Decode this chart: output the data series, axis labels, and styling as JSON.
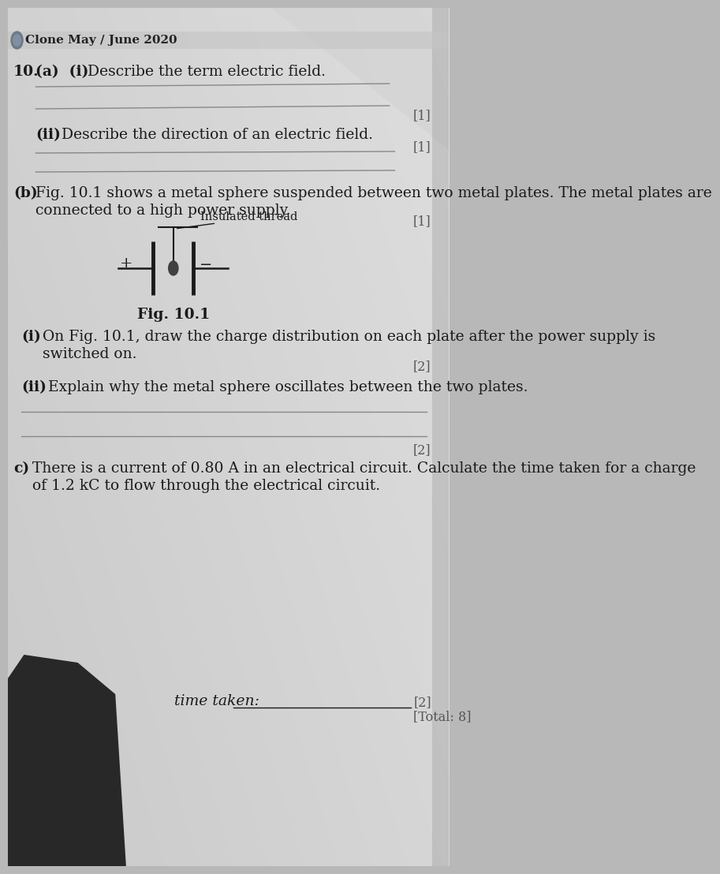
{
  "header": "Clone May / June 2020",
  "bg_top_color": "#c8c8c8",
  "bg_bottom_color": "#b0b0b0",
  "paper_color": "#d6d6d6",
  "text_color": "#1a1a1a",
  "line_color": "#888888",
  "mark_color": "#555555",
  "q_number": "10.",
  "q_a_i_label": "(a)  (i)",
  "q_a_i_text": "Describe the term electric field.",
  "q_a_ii_label": "(ii)",
  "q_a_ii_text": "Describe the direction of an electric field.",
  "mark_1": "[1]",
  "q_b_label": "(b)",
  "q_b_line1": "Fig. 10.1 shows a metal sphere suspended between two metal plates. The metal plates are",
  "q_b_line2": "connected to a high power supply.",
  "fig_label": "Fig. 10.1",
  "fig_thread_label": "Insulated thread",
  "q_b_i_label": "(i)",
  "q_b_i_line1": "On Fig. 10.1, draw the charge distribution on each plate after the power supply is",
  "q_b_i_line2": "switched on.",
  "mark_2": "[2]",
  "q_b_ii_label": "(ii)",
  "q_b_ii_text": "Explain why the metal sphere oscillates between the two plates.",
  "q_c_label": "c)",
  "q_c_line1": "There is a current of 0.80 A in an electrical circuit. Calculate the time taken for a charge",
  "q_c_line2": "of 1.2 kC to flow through the electrical circuit.",
  "time_taken_label": "time taken:",
  "total_mark": "[Total: 8]",
  "shadow_color": "#1a1a1a",
  "icon_color": "#607080"
}
